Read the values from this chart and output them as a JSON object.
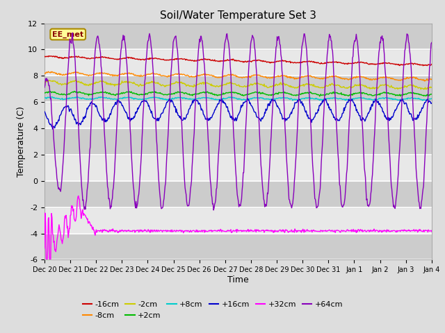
{
  "title": "Soil/Water Temperature Set 3",
  "xlabel": "Time",
  "ylabel": "Temperature (C)",
  "ylim": [
    -6,
    12
  ],
  "yticks": [
    -6,
    -4,
    -2,
    0,
    2,
    4,
    6,
    8,
    10,
    12
  ],
  "annotation_text": "EE_met",
  "annotation_bg": "#ffff99",
  "annotation_border": "#aa8800",
  "colors": {
    "-16cm": "#cc0000",
    "-8cm": "#ff8800",
    "-2cm": "#cccc00",
    "+2cm": "#00bb00",
    "+8cm": "#00cccc",
    "+16cm": "#0000cc",
    "+32cm": "#ff00ff",
    "+64cm": "#8800bb"
  },
  "tick_labels": [
    "Dec 20",
    "Dec 21",
    "Dec 22",
    "Dec 23",
    "Dec 24",
    "Dec 25",
    "Dec 26",
    "Dec 27",
    "Dec 28",
    "Dec 29",
    "Dec 30",
    "Dec 31",
    "Jan 1",
    "Jan 2",
    "Jan 3",
    "Jan 4"
  ],
  "n_days": 15,
  "ppd": 48
}
